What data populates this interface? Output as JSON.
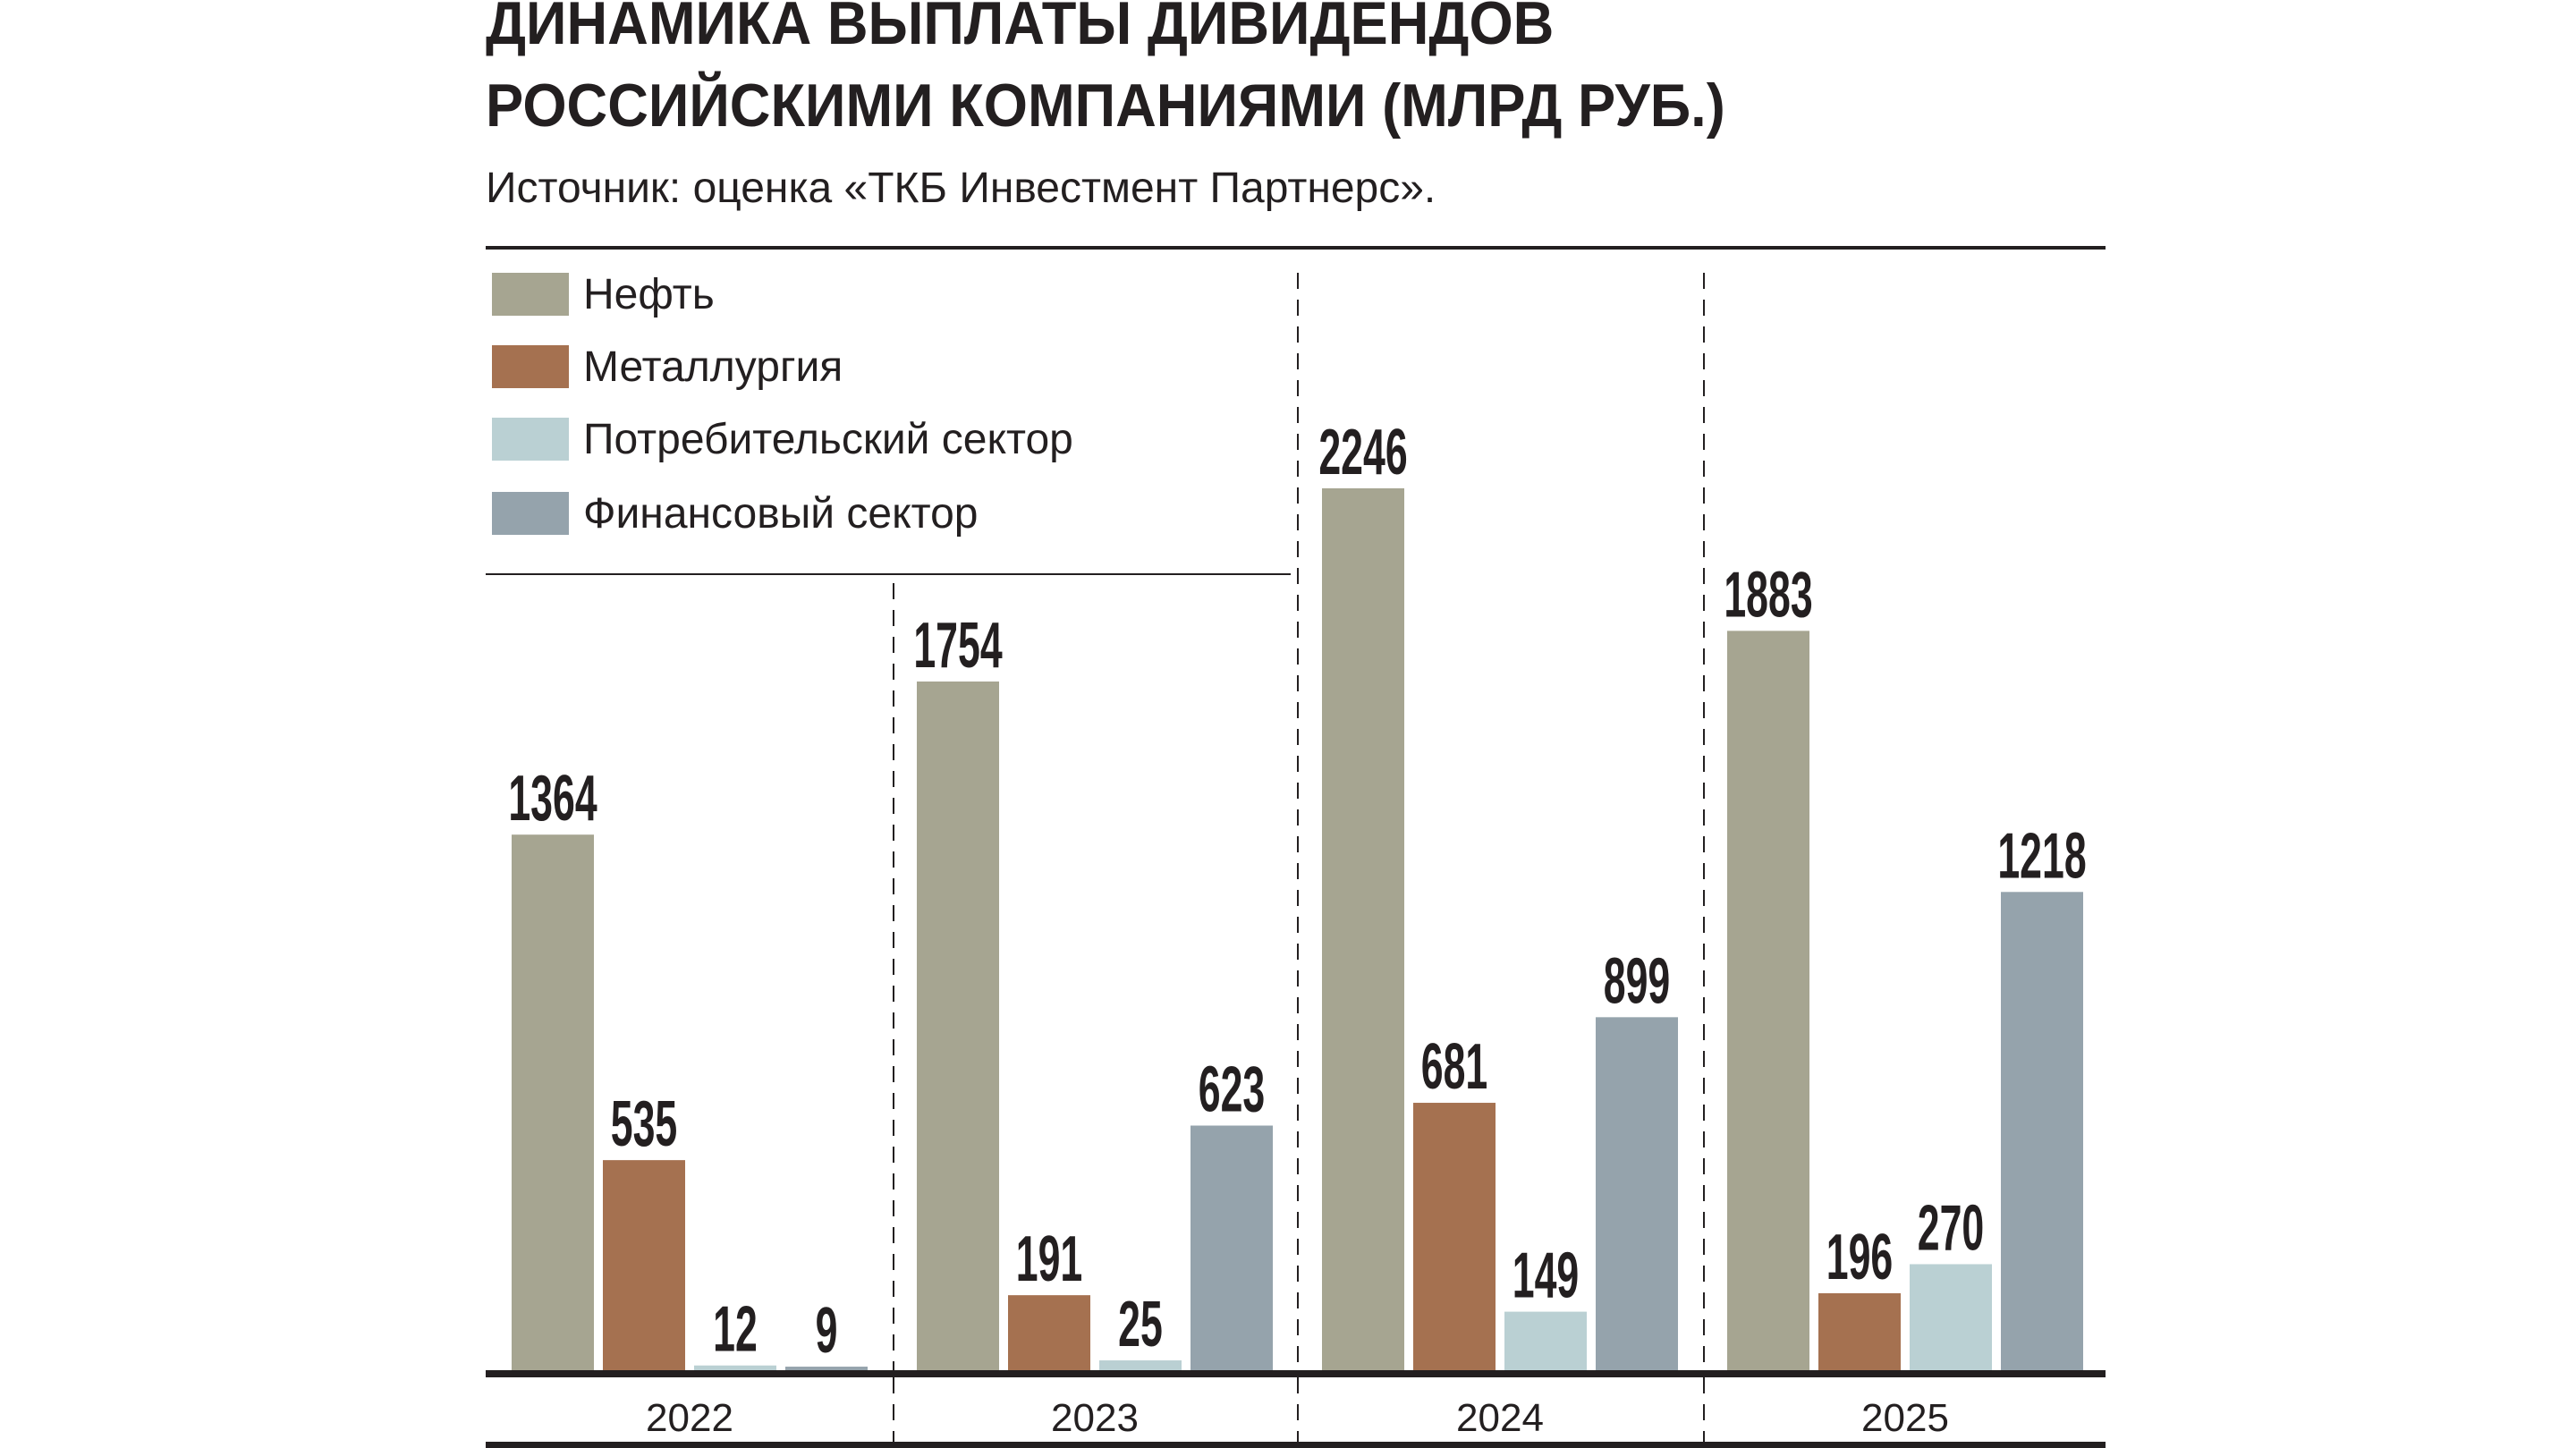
{
  "chart_data": {
    "type": "bar",
    "title": "ДИНАМИКА ВЫПЛАТЫ ДИВИДЕНДОВ РОССИЙСКИМИ КОМПАНИЯМИ (МЛРД РУБ.)",
    "title_lines": [
      "ДИНАМИКА ВЫПЛАТЫ ДИВИДЕНДОВ",
      "РОССИЙСКИМИ КОМПАНИЯМИ (МЛРД РУБ.)"
    ],
    "subtitle": "Источник: оценка «ТКБ Инвестмент Партнерс».",
    "categories": [
      "2022",
      "2023",
      "2024",
      "2025"
    ],
    "series": [
      {
        "name": "Нефть",
        "color": "#a6a591",
        "values": [
          1364,
          1754,
          2246,
          1883
        ]
      },
      {
        "name": "Металлургия",
        "color": "#a57150",
        "values": [
          535,
          191,
          681,
          196
        ]
      },
      {
        "name": "Потребительский сектор",
        "color": "#bad0d3",
        "values": [
          12,
          25,
          149,
          270
        ]
      },
      {
        "name": "Финансовый сектор",
        "color": "#95a3ac",
        "values": [
          9,
          623,
          899,
          1218
        ]
      }
    ],
    "ylim": [
      0,
      2246
    ],
    "grid": false,
    "legend": "top-left",
    "data_labels": true
  }
}
